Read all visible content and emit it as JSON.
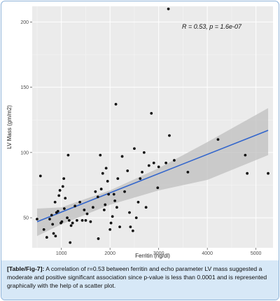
{
  "chart_data": {
    "type": "scatter",
    "xlabel": "Ferritin (ng/dl)",
    "ylabel": "LV Mass (gm/m2)",
    "xlim": [
      400,
      5350
    ],
    "ylim": [
      27,
      212
    ],
    "xticks": [
      1000,
      2000,
      3000,
      4000,
      5000
    ],
    "yticks": [
      50,
      100,
      150,
      200
    ],
    "annotation": "R = 0.53, p = 1.6e-07",
    "grid": true,
    "colors": {
      "points": "#111111",
      "fit_line": "#3366cc",
      "ci_band": "#bfbfbf",
      "panel": "#ebebeb"
    },
    "fit": {
      "x": [
        500,
        5250
      ],
      "y": [
        47,
        117
      ]
    },
    "ci_band": {
      "x": [
        500,
        1000,
        2000,
        3000,
        4000,
        5250
      ],
      "upper": [
        57,
        58,
        71,
        88,
        108,
        134
      ],
      "lower": [
        36,
        45,
        60,
        71,
        79,
        98
      ]
    },
    "points": [
      [
        500,
        49
      ],
      [
        570,
        82
      ],
      [
        640,
        41
      ],
      [
        700,
        35
      ],
      [
        760,
        49
      ],
      [
        800,
        52
      ],
      [
        820,
        45
      ],
      [
        840,
        38
      ],
      [
        870,
        62
      ],
      [
        880,
        36
      ],
      [
        900,
        54
      ],
      [
        930,
        55
      ],
      [
        950,
        67
      ],
      [
        970,
        71
      ],
      [
        990,
        46
      ],
      [
        1010,
        47
      ],
      [
        1030,
        74
      ],
      [
        1050,
        80
      ],
      [
        1060,
        57
      ],
      [
        1080,
        65
      ],
      [
        1120,
        50
      ],
      [
        1140,
        98
      ],
      [
        1160,
        48
      ],
      [
        1180,
        31
      ],
      [
        1200,
        44
      ],
      [
        1230,
        46
      ],
      [
        1280,
        59
      ],
      [
        1320,
        48
      ],
      [
        1380,
        62
      ],
      [
        1430,
        48
      ],
      [
        1470,
        56
      ],
      [
        1500,
        48
      ],
      [
        1530,
        53
      ],
      [
        1600,
        47
      ],
      [
        1650,
        58
      ],
      [
        1700,
        70
      ],
      [
        1750,
        66
      ],
      [
        1760,
        34
      ],
      [
        1800,
        98
      ],
      [
        1820,
        72
      ],
      [
        1850,
        84
      ],
      [
        1880,
        56
      ],
      [
        1900,
        60
      ],
      [
        1920,
        88
      ],
      [
        1950,
        78
      ],
      [
        1970,
        68
      ],
      [
        2000,
        41
      ],
      [
        2020,
        46
      ],
      [
        2050,
        51
      ],
      [
        2080,
        68
      ],
      [
        2100,
        63
      ],
      [
        2120,
        137
      ],
      [
        2140,
        58
      ],
      [
        2160,
        80
      ],
      [
        2200,
        43
      ],
      [
        2250,
        97
      ],
      [
        2300,
        70
      ],
      [
        2360,
        86
      ],
      [
        2400,
        54
      ],
      [
        2420,
        43
      ],
      [
        2470,
        40
      ],
      [
        2500,
        103
      ],
      [
        2540,
        50
      ],
      [
        2580,
        62
      ],
      [
        2620,
        80
      ],
      [
        2660,
        85
      ],
      [
        2700,
        100
      ],
      [
        2740,
        58
      ],
      [
        2800,
        90
      ],
      [
        2850,
        130
      ],
      [
        2900,
        92
      ],
      [
        2980,
        73
      ],
      [
        3000,
        89
      ],
      [
        3150,
        92
      ],
      [
        3200,
        210
      ],
      [
        3220,
        113
      ],
      [
        3320,
        94
      ],
      [
        3600,
        85
      ],
      [
        4220,
        110
      ],
      [
        4780,
        98
      ],
      [
        4820,
        84
      ],
      [
        5250,
        84
      ]
    ]
  },
  "caption": {
    "label": "[Table/Fig-7]:",
    "text": " A correlation of r=0.53 between ferritin and echo parameter LV mass suggested a moderate and positive significant association since p-value is less than 0.0001 and is represented graphically with the help of a scatter plot."
  }
}
